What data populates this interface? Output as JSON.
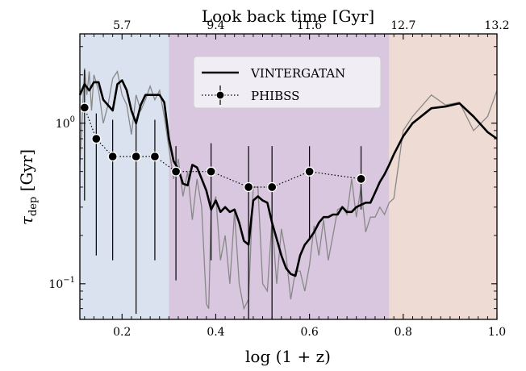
{
  "chart_data": {
    "type": "line",
    "xlabel": "log (1 + z)",
    "ylabel": "τ",
    "ylabel_sub": "dep",
    "ylabel_unit": "[Gyr]",
    "top_axis_label": "Look back time [Gyr]",
    "xlim": [
      0.11,
      1.0
    ],
    "ylim": [
      0.06,
      3.6
    ],
    "yscale": "log",
    "x_ticks": [
      {
        "value": 0.2,
        "label": "0.2"
      },
      {
        "value": 0.4,
        "label": "0.4"
      },
      {
        "value": 0.6,
        "label": "0.6"
      },
      {
        "value": 0.8,
        "label": "0.8"
      },
      {
        "value": 1.0,
        "label": "1.0"
      }
    ],
    "y_ticks": [
      {
        "value": 1.0,
        "label_base": "10",
        "label_exp": "0"
      },
      {
        "value": 0.1,
        "label_base": "10",
        "label_exp": "−1"
      }
    ],
    "top_ticks": [
      {
        "value": 0.2,
        "label": "5.7"
      },
      {
        "value": 0.4,
        "label": "9.4"
      },
      {
        "value": 0.6,
        "label": "11.6"
      },
      {
        "value": 0.8,
        "label": "12.7"
      },
      {
        "value": 1.0,
        "label": "13.2"
      }
    ],
    "regions": [
      {
        "x0": 0.11,
        "x1": 0.3,
        "color": "#dbe2ef"
      },
      {
        "x0": 0.3,
        "x1": 0.77,
        "color": "#d8c7de"
      },
      {
        "x0": 0.77,
        "x1": 1.0,
        "color": "#eedbd4"
      }
    ],
    "legend": {
      "position": "top-center",
      "entries": [
        {
          "label": "VINTERGATAN",
          "style": "line"
        },
        {
          "label": "PHIBSS",
          "style": "marker-errorbar"
        }
      ]
    },
    "series": [
      {
        "name": "VINTERGATAN",
        "color": "#000000",
        "x": [
          0.11,
          0.12,
          0.13,
          0.14,
          0.15,
          0.16,
          0.18,
          0.19,
          0.2,
          0.21,
          0.22,
          0.23,
          0.24,
          0.25,
          0.26,
          0.27,
          0.28,
          0.29,
          0.3,
          0.31,
          0.32,
          0.33,
          0.34,
          0.35,
          0.36,
          0.37,
          0.38,
          0.39,
          0.4,
          0.41,
          0.42,
          0.43,
          0.44,
          0.45,
          0.46,
          0.47,
          0.48,
          0.49,
          0.5,
          0.51,
          0.52,
          0.53,
          0.54,
          0.55,
          0.56,
          0.57,
          0.58,
          0.59,
          0.6,
          0.61,
          0.62,
          0.63,
          0.64,
          0.65,
          0.66,
          0.67,
          0.68,
          0.69,
          0.7,
          0.71,
          0.72,
          0.73,
          0.74,
          0.75,
          0.76,
          0.77,
          0.78,
          0.8,
          0.82,
          0.86,
          0.89,
          0.92,
          0.95,
          0.98,
          1.0
        ],
        "values": [
          1.5,
          1.75,
          1.6,
          1.8,
          1.8,
          1.4,
          1.2,
          1.75,
          1.85,
          1.6,
          1.2,
          1.0,
          1.3,
          1.5,
          1.5,
          1.5,
          1.5,
          1.35,
          0.8,
          0.58,
          0.52,
          0.42,
          0.41,
          0.55,
          0.53,
          0.45,
          0.38,
          0.29,
          0.33,
          0.28,
          0.3,
          0.28,
          0.29,
          0.24,
          0.185,
          0.175,
          0.33,
          0.35,
          0.33,
          0.32,
          0.24,
          0.19,
          0.15,
          0.125,
          0.115,
          0.112,
          0.15,
          0.175,
          0.19,
          0.21,
          0.24,
          0.26,
          0.26,
          0.27,
          0.27,
          0.3,
          0.28,
          0.28,
          0.3,
          0.31,
          0.32,
          0.32,
          0.37,
          0.43,
          0.48,
          0.55,
          0.64,
          0.83,
          1.0,
          1.24,
          1.27,
          1.33,
          1.1,
          0.88,
          0.8
        ]
      },
      {
        "name": "",
        "color": "#888888",
        "x": [
          0.11,
          0.12,
          0.125,
          0.13,
          0.135,
          0.14,
          0.15,
          0.16,
          0.17,
          0.18,
          0.19,
          0.2,
          0.21,
          0.22,
          0.23,
          0.24,
          0.25,
          0.26,
          0.27,
          0.28,
          0.29,
          0.3,
          0.31,
          0.32,
          0.33,
          0.34,
          0.35,
          0.36,
          0.37,
          0.38,
          0.385,
          0.39,
          0.4,
          0.41,
          0.42,
          0.43,
          0.44,
          0.45,
          0.46,
          0.47,
          0.48,
          0.49,
          0.5,
          0.51,
          0.52,
          0.53,
          0.54,
          0.55,
          0.56,
          0.57,
          0.58,
          0.59,
          0.6,
          0.61,
          0.62,
          0.63,
          0.64,
          0.65,
          0.66,
          0.67,
          0.68,
          0.69,
          0.7,
          0.71,
          0.72,
          0.73,
          0.74,
          0.75,
          0.76,
          0.77,
          0.78,
          0.8,
          0.82,
          0.86,
          0.89,
          0.92,
          0.95,
          0.98,
          1.0
        ],
        "values": [
          0.55,
          2.2,
          1.5,
          2.1,
          1.2,
          2.0,
          1.6,
          1.0,
          1.3,
          1.9,
          2.1,
          1.5,
          1.3,
          0.85,
          1.5,
          1.2,
          1.4,
          1.7,
          1.4,
          1.6,
          1.1,
          0.7,
          0.45,
          0.6,
          0.35,
          0.5,
          0.25,
          0.45,
          0.3,
          0.075,
          0.07,
          0.28,
          0.35,
          0.14,
          0.2,
          0.1,
          0.28,
          0.1,
          0.07,
          0.08,
          0.4,
          0.4,
          0.1,
          0.09,
          0.25,
          0.1,
          0.22,
          0.15,
          0.08,
          0.12,
          0.12,
          0.09,
          0.13,
          0.23,
          0.15,
          0.25,
          0.14,
          0.2,
          0.29,
          0.3,
          0.27,
          0.45,
          0.26,
          0.4,
          0.21,
          0.26,
          0.26,
          0.3,
          0.27,
          0.32,
          0.34,
          0.9,
          1.1,
          1.5,
          1.3,
          1.35,
          0.9,
          1.1,
          1.6
        ]
      },
      {
        "name": "PHIBSS",
        "color": "#000000",
        "x": [
          0.12,
          0.145,
          0.18,
          0.23,
          0.27,
          0.315,
          0.39,
          0.47,
          0.52,
          0.6,
          0.71
        ],
        "values": [
          1.25,
          0.8,
          0.62,
          0.62,
          0.62,
          0.5,
          0.5,
          0.4,
          0.4,
          0.5,
          0.45
        ],
        "err_low": [
          0.33,
          0.15,
          0.14,
          0.065,
          0.14,
          0.105,
          0.14,
          0.06,
          0.06,
          0.19,
          0.29
        ],
        "err_high": [
          2.15,
          1.15,
          1.05,
          1.05,
          1.05,
          0.72,
          0.75,
          0.72,
          0.72,
          0.72,
          0.72
        ]
      }
    ]
  }
}
